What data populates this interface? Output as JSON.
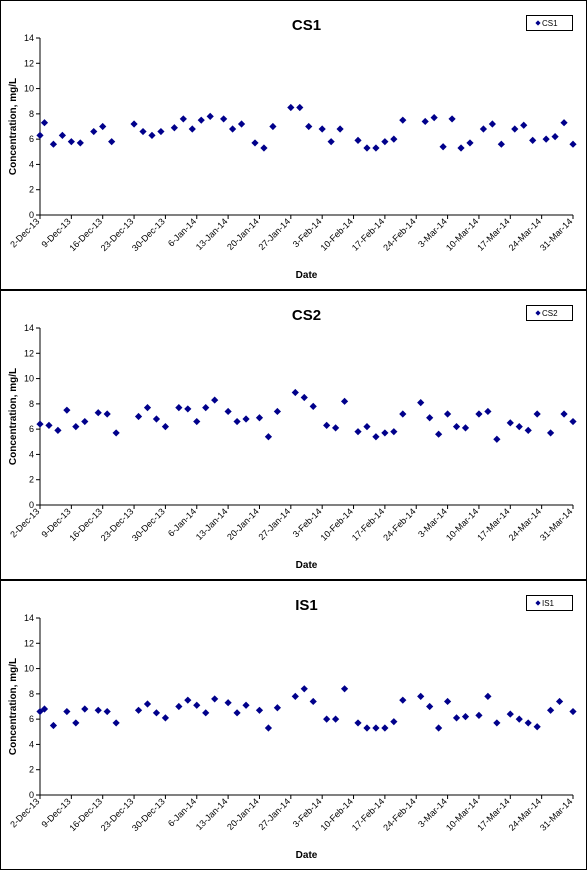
{
  "chart_data": [
    {
      "type": "scatter",
      "title": "CS1",
      "xlabel": "Date",
      "ylabel": "Concentration, mg/L",
      "ylim": [
        0,
        14
      ],
      "y_ticks": [
        "0",
        "2",
        "4",
        "6",
        "8",
        "10",
        "12",
        "14"
      ],
      "x_ticks": [
        "2-Dec-13",
        "9-Dec-13",
        "16-Dec-13",
        "23-Dec-13",
        "30-Dec-13",
        "6-Jan-14",
        "13-Jan-14",
        "20-Jan-14",
        "27-Jan-14",
        "3-Feb-14",
        "10-Feb-14",
        "17-Feb-14",
        "24-Feb-14",
        "3-Mar-14",
        "10-Mar-14",
        "17-Mar-14",
        "24-Mar-14",
        "31-Mar-14"
      ],
      "x_range": [
        "2-Dec-13",
        "31-Mar-14"
      ],
      "legend": "top-right",
      "grid": false,
      "color": "#00008B",
      "series": [
        {
          "name": "CS1",
          "points": [
            {
              "x": "2-Dec-13",
              "y": 6.3
            },
            {
              "x": "3-Dec-13",
              "y": 7.3
            },
            {
              "x": "5-Dec-13",
              "y": 5.6
            },
            {
              "x": "7-Dec-13",
              "y": 6.3
            },
            {
              "x": "9-Dec-13",
              "y": 5.8
            },
            {
              "x": "11-Dec-13",
              "y": 5.7
            },
            {
              "x": "14-Dec-13",
              "y": 6.6
            },
            {
              "x": "16-Dec-13",
              "y": 7.0
            },
            {
              "x": "18-Dec-13",
              "y": 5.8
            },
            {
              "x": "23-Dec-13",
              "y": 7.2
            },
            {
              "x": "25-Dec-13",
              "y": 6.6
            },
            {
              "x": "27-Dec-13",
              "y": 6.3
            },
            {
              "x": "29-Dec-13",
              "y": 6.6
            },
            {
              "x": "1-Jan-14",
              "y": 6.9
            },
            {
              "x": "3-Jan-14",
              "y": 7.6
            },
            {
              "x": "5-Jan-14",
              "y": 6.8
            },
            {
              "x": "7-Jan-14",
              "y": 7.5
            },
            {
              "x": "9-Jan-14",
              "y": 7.8
            },
            {
              "x": "12-Jan-14",
              "y": 7.6
            },
            {
              "x": "14-Jan-14",
              "y": 6.8
            },
            {
              "x": "16-Jan-14",
              "y": 7.2
            },
            {
              "x": "19-Jan-14",
              "y": 5.7
            },
            {
              "x": "21-Jan-14",
              "y": 5.3
            },
            {
              "x": "23-Jan-14",
              "y": 7.0
            },
            {
              "x": "27-Jan-14",
              "y": 8.5
            },
            {
              "x": "29-Jan-14",
              "y": 8.5
            },
            {
              "x": "31-Jan-14",
              "y": 7.0
            },
            {
              "x": "3-Feb-14",
              "y": 6.8
            },
            {
              "x": "5-Feb-14",
              "y": 5.8
            },
            {
              "x": "7-Feb-14",
              "y": 6.8
            },
            {
              "x": "11-Feb-14",
              "y": 5.9
            },
            {
              "x": "13-Feb-14",
              "y": 5.3
            },
            {
              "x": "15-Feb-14",
              "y": 5.3
            },
            {
              "x": "17-Feb-14",
              "y": 5.8
            },
            {
              "x": "19-Feb-14",
              "y": 6.0
            },
            {
              "x": "21-Feb-14",
              "y": 7.5
            },
            {
              "x": "26-Feb-14",
              "y": 7.4
            },
            {
              "x": "28-Feb-14",
              "y": 7.7
            },
            {
              "x": "2-Mar-14",
              "y": 5.4
            },
            {
              "x": "4-Mar-14",
              "y": 7.6
            },
            {
              "x": "6-Mar-14",
              "y": 5.3
            },
            {
              "x": "8-Mar-14",
              "y": 5.7
            },
            {
              "x": "11-Mar-14",
              "y": 6.8
            },
            {
              "x": "13-Mar-14",
              "y": 7.2
            },
            {
              "x": "15-Mar-14",
              "y": 5.6
            },
            {
              "x": "18-Mar-14",
              "y": 6.8
            },
            {
              "x": "20-Mar-14",
              "y": 7.1
            },
            {
              "x": "22-Mar-14",
              "y": 5.9
            },
            {
              "x": "25-Mar-14",
              "y": 6.0
            },
            {
              "x": "27-Mar-14",
              "y": 6.2
            },
            {
              "x": "29-Mar-14",
              "y": 7.3
            },
            {
              "x": "31-Mar-14",
              "y": 5.6
            }
          ]
        }
      ]
    },
    {
      "type": "scatter",
      "title": "CS2",
      "xlabel": "Date",
      "ylabel": "Concentration, mg/L",
      "ylim": [
        0,
        14
      ],
      "y_ticks": [
        "0",
        "2",
        "4",
        "6",
        "8",
        "10",
        "12",
        "14"
      ],
      "x_ticks": [
        "2-Dec-13",
        "9-Dec-13",
        "16-Dec-13",
        "23-Dec-13",
        "30-Dec-13",
        "6-Jan-14",
        "13-Jan-14",
        "20-Jan-14",
        "27-Jan-14",
        "3-Feb-14",
        "10-Feb-14",
        "17-Feb-14",
        "24-Feb-14",
        "3-Mar-14",
        "10-Mar-14",
        "17-Mar-14",
        "24-Mar-14",
        "31-Mar-14"
      ],
      "x_range": [
        "2-Dec-13",
        "31-Mar-14"
      ],
      "legend": "top-right",
      "grid": false,
      "color": "#00008B",
      "series": [
        {
          "name": "CS2",
          "points": [
            {
              "x": "2-Dec-13",
              "y": 6.4
            },
            {
              "x": "4-Dec-13",
              "y": 6.3
            },
            {
              "x": "6-Dec-13",
              "y": 5.9
            },
            {
              "x": "8-Dec-13",
              "y": 7.5
            },
            {
              "x": "10-Dec-13",
              "y": 6.2
            },
            {
              "x": "12-Dec-13",
              "y": 6.6
            },
            {
              "x": "15-Dec-13",
              "y": 7.3
            },
            {
              "x": "17-Dec-13",
              "y": 7.2
            },
            {
              "x": "19-Dec-13",
              "y": 5.7
            },
            {
              "x": "24-Dec-13",
              "y": 7.0
            },
            {
              "x": "26-Dec-13",
              "y": 7.7
            },
            {
              "x": "28-Dec-13",
              "y": 6.8
            },
            {
              "x": "30-Dec-13",
              "y": 6.2
            },
            {
              "x": "2-Jan-14",
              "y": 7.7
            },
            {
              "x": "4-Jan-14",
              "y": 7.6
            },
            {
              "x": "6-Jan-14",
              "y": 6.6
            },
            {
              "x": "8-Jan-14",
              "y": 7.7
            },
            {
              "x": "10-Jan-14",
              "y": 8.3
            },
            {
              "x": "13-Jan-14",
              "y": 7.4
            },
            {
              "x": "15-Jan-14",
              "y": 6.6
            },
            {
              "x": "17-Jan-14",
              "y": 6.8
            },
            {
              "x": "20-Jan-14",
              "y": 6.9
            },
            {
              "x": "22-Jan-14",
              "y": 5.4
            },
            {
              "x": "24-Jan-14",
              "y": 7.4
            },
            {
              "x": "28-Jan-14",
              "y": 8.9
            },
            {
              "x": "30-Jan-14",
              "y": 8.5
            },
            {
              "x": "1-Feb-14",
              "y": 7.8
            },
            {
              "x": "4-Feb-14",
              "y": 6.3
            },
            {
              "x": "6-Feb-14",
              "y": 6.1
            },
            {
              "x": "8-Feb-14",
              "y": 8.2
            },
            {
              "x": "11-Feb-14",
              "y": 5.8
            },
            {
              "x": "13-Feb-14",
              "y": 6.2
            },
            {
              "x": "15-Feb-14",
              "y": 5.4
            },
            {
              "x": "17-Feb-14",
              "y": 5.7
            },
            {
              "x": "19-Feb-14",
              "y": 5.8
            },
            {
              "x": "21-Feb-14",
              "y": 7.2
            },
            {
              "x": "25-Feb-14",
              "y": 8.1
            },
            {
              "x": "27-Feb-14",
              "y": 6.9
            },
            {
              "x": "1-Mar-14",
              "y": 5.6
            },
            {
              "x": "3-Mar-14",
              "y": 7.2
            },
            {
              "x": "5-Mar-14",
              "y": 6.2
            },
            {
              "x": "7-Mar-14",
              "y": 6.1
            },
            {
              "x": "10-Mar-14",
              "y": 7.2
            },
            {
              "x": "12-Mar-14",
              "y": 7.4
            },
            {
              "x": "14-Mar-14",
              "y": 5.2
            },
            {
              "x": "17-Mar-14",
              "y": 6.5
            },
            {
              "x": "19-Mar-14",
              "y": 6.2
            },
            {
              "x": "21-Mar-14",
              "y": 5.9
            },
            {
              "x": "23-Mar-14",
              "y": 7.2
            },
            {
              "x": "26-Mar-14",
              "y": 5.7
            },
            {
              "x": "29-Mar-14",
              "y": 7.2
            },
            {
              "x": "31-Mar-14",
              "y": 6.6
            }
          ]
        }
      ]
    },
    {
      "type": "scatter",
      "title": "IS1",
      "xlabel": "Date",
      "ylabel": "Concentration, mg/L",
      "ylim": [
        0,
        14
      ],
      "y_ticks": [
        "0",
        "2",
        "4",
        "6",
        "8",
        "10",
        "12",
        "14"
      ],
      "x_ticks": [
        "2-Dec-13",
        "9-Dec-13",
        "16-Dec-13",
        "23-Dec-13",
        "30-Dec-13",
        "6-Jan-14",
        "13-Jan-14",
        "20-Jan-14",
        "27-Jan-14",
        "3-Feb-14",
        "10-Feb-14",
        "17-Feb-14",
        "24-Feb-14",
        "3-Mar-14",
        "10-Mar-14",
        "17-Mar-14",
        "24-Mar-14",
        "31-Mar-14"
      ],
      "x_range": [
        "2-Dec-13",
        "31-Mar-14"
      ],
      "legend": "top-right",
      "grid": false,
      "color": "#00008B",
      "series": [
        {
          "name": "IS1",
          "points": [
            {
              "x": "2-Dec-13",
              "y": 6.6
            },
            {
              "x": "3-Dec-13",
              "y": 6.8
            },
            {
              "x": "5-Dec-13",
              "y": 5.5
            },
            {
              "x": "8-Dec-13",
              "y": 6.6
            },
            {
              "x": "10-Dec-13",
              "y": 5.7
            },
            {
              "x": "12-Dec-13",
              "y": 6.8
            },
            {
              "x": "15-Dec-13",
              "y": 6.7
            },
            {
              "x": "17-Dec-13",
              "y": 6.6
            },
            {
              "x": "19-Dec-13",
              "y": 5.7
            },
            {
              "x": "24-Dec-13",
              "y": 6.7
            },
            {
              "x": "26-Dec-13",
              "y": 7.2
            },
            {
              "x": "28-Dec-13",
              "y": 6.5
            },
            {
              "x": "30-Dec-13",
              "y": 6.1
            },
            {
              "x": "2-Jan-14",
              "y": 7.0
            },
            {
              "x": "4-Jan-14",
              "y": 7.5
            },
            {
              "x": "6-Jan-14",
              "y": 7.1
            },
            {
              "x": "8-Jan-14",
              "y": 6.5
            },
            {
              "x": "10-Jan-14",
              "y": 7.6
            },
            {
              "x": "13-Jan-14",
              "y": 7.3
            },
            {
              "x": "15-Jan-14",
              "y": 6.5
            },
            {
              "x": "17-Jan-14",
              "y": 7.1
            },
            {
              "x": "20-Jan-14",
              "y": 6.7
            },
            {
              "x": "22-Jan-14",
              "y": 5.3
            },
            {
              "x": "24-Jan-14",
              "y": 6.9
            },
            {
              "x": "28-Jan-14",
              "y": 7.8
            },
            {
              "x": "30-Jan-14",
              "y": 8.4
            },
            {
              "x": "1-Feb-14",
              "y": 7.4
            },
            {
              "x": "4-Feb-14",
              "y": 6.0
            },
            {
              "x": "6-Feb-14",
              "y": 6.0
            },
            {
              "x": "8-Feb-14",
              "y": 8.4
            },
            {
              "x": "11-Feb-14",
              "y": 5.7
            },
            {
              "x": "13-Feb-14",
              "y": 5.3
            },
            {
              "x": "15-Feb-14",
              "y": 5.3
            },
            {
              "x": "17-Feb-14",
              "y": 5.3
            },
            {
              "x": "19-Feb-14",
              "y": 5.8
            },
            {
              "x": "21-Feb-14",
              "y": 7.5
            },
            {
              "x": "25-Feb-14",
              "y": 7.8
            },
            {
              "x": "27-Feb-14",
              "y": 7.0
            },
            {
              "x": "1-Mar-14",
              "y": 5.3
            },
            {
              "x": "3-Mar-14",
              "y": 7.4
            },
            {
              "x": "5-Mar-14",
              "y": 6.1
            },
            {
              "x": "7-Mar-14",
              "y": 6.2
            },
            {
              "x": "10-Mar-14",
              "y": 6.3
            },
            {
              "x": "12-Mar-14",
              "y": 7.8
            },
            {
              "x": "14-Mar-14",
              "y": 5.7
            },
            {
              "x": "17-Mar-14",
              "y": 6.4
            },
            {
              "x": "19-Mar-14",
              "y": 6.0
            },
            {
              "x": "21-Mar-14",
              "y": 5.7
            },
            {
              "x": "23-Mar-14",
              "y": 5.4
            },
            {
              "x": "26-Mar-14",
              "y": 6.7
            },
            {
              "x": "28-Mar-14",
              "y": 7.4
            },
            {
              "x": "31-Mar-14",
              "y": 6.6
            }
          ]
        }
      ]
    }
  ]
}
